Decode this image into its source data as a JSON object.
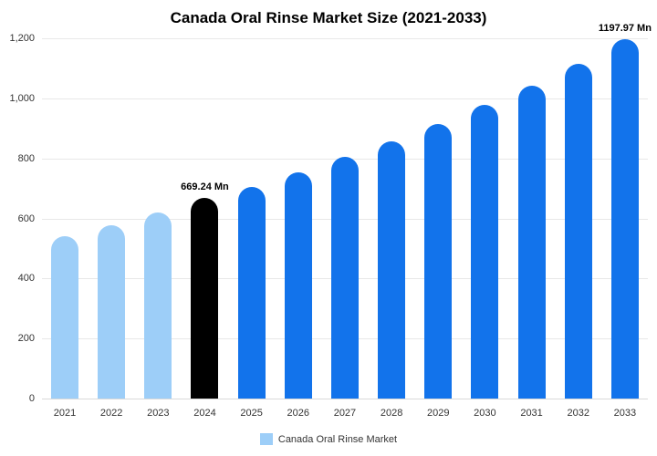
{
  "chart_data": {
    "type": "bar",
    "title": "Canada Oral Rinse Market Size (2021-2033)",
    "categories": [
      "2021",
      "2022",
      "2023",
      "2024",
      "2025",
      "2026",
      "2027",
      "2028",
      "2029",
      "2030",
      "2031",
      "2032",
      "2033"
    ],
    "series": [
      {
        "name": "Canada Oral Rinse Market",
        "values": [
          540,
          578,
          620,
          669.24,
          706,
          752,
          806,
          857,
          915,
          979,
          1043,
          1114,
          1197.97
        ]
      }
    ],
    "point_colors": [
      "#9DCEF8",
      "#9DCEF8",
      "#9DCEF8",
      "#000000",
      "#1273EB",
      "#1273EB",
      "#1273EB",
      "#1273EB",
      "#1273EB",
      "#1273EB",
      "#1273EB",
      "#1273EB",
      "#1273EB"
    ],
    "point_labels": [
      "",
      "",
      "",
      "669.24 Mn",
      "",
      "",
      "",
      "",
      "",
      "",
      "",
      "",
      "1197.97 Mn"
    ],
    "ylim": [
      0,
      1200
    ],
    "ytick_step": 200,
    "ytick_labels": [
      "0",
      "200",
      "400",
      "600",
      "800",
      "1,000",
      "1,200"
    ],
    "grid": true,
    "legend": {
      "position": "bottom",
      "label": "Canada Oral Rinse Market",
      "swatch_color": "#9DCEF8"
    },
    "colors": {
      "light_blue": "#9DCEF8",
      "highlight_black": "#000000",
      "main_blue": "#1273EB",
      "grid": "#E8E8E8",
      "axis_text": "#333333"
    }
  }
}
